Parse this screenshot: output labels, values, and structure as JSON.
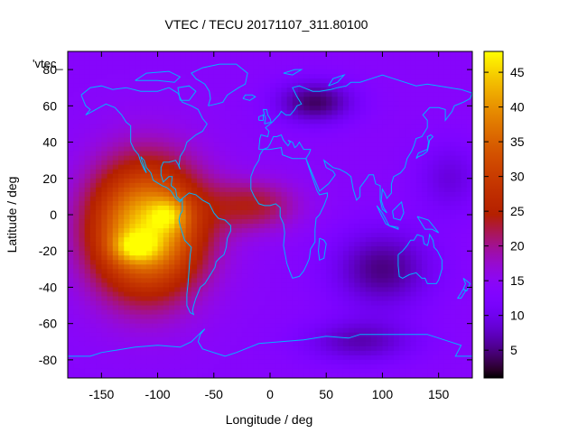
{
  "chart_data": {
    "type": "heatmap",
    "title": "VTEC / TECU 20171107_311.80100",
    "xlabel": "Longitude / deg",
    "ylabel": "Latitude / deg",
    "xlim": [
      -180,
      180
    ],
    "ylim": [
      -90,
      90
    ],
    "xticks": [
      -150,
      -100,
      -50,
      0,
      50,
      100,
      150
    ],
    "yticks": [
      -80,
      -60,
      -40,
      -20,
      0,
      20,
      40,
      60,
      80
    ],
    "legend_text": "'vtec_",
    "colorbar": {
      "range": [
        1,
        48
      ],
      "ticks": [
        5,
        10,
        15,
        20,
        25,
        30,
        35,
        40,
        45
      ],
      "colormap": "gnuplot-rgbformulae-7-5-15",
      "position": "right"
    },
    "grid": false,
    "overlay": "coastlines",
    "peaks": [
      {
        "lon": -120,
        "lat": -18,
        "value": 47
      },
      {
        "lon": -90,
        "lat": 0,
        "value": 44
      },
      {
        "lon": -120,
        "lat": 20,
        "value": 32
      }
    ],
    "background_value": 14
  }
}
